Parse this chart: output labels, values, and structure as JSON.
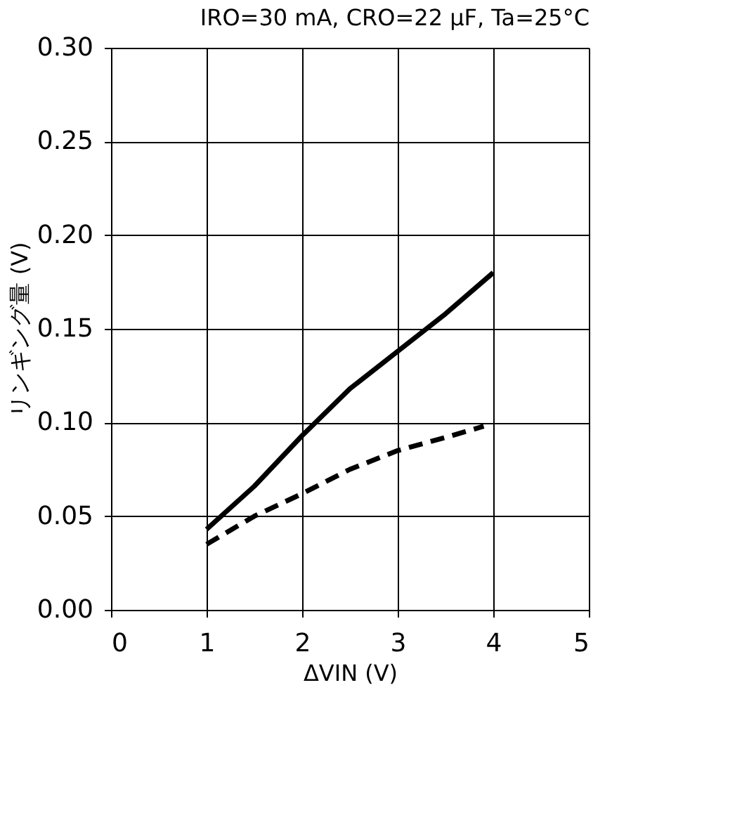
{
  "chart_data": {
    "type": "line",
    "title": "IRO=30 mA, CRO=22 µF, Ta=25°C",
    "xlabel": "ΔVIN (V)",
    "ylabel": "リンギング量 (V)",
    "xlim": [
      0,
      5
    ],
    "xticks": [
      0,
      1,
      2,
      3,
      4,
      5
    ],
    "ylim": [
      0,
      0.3
    ],
    "yticks": [
      {
        "value": 0,
        "label": "0.00"
      },
      {
        "value": 0.05,
        "label": "0.05"
      },
      {
        "value": 0.1,
        "label": "0.10"
      },
      {
        "value": 0.15,
        "label": "0.15"
      },
      {
        "value": 0.2,
        "label": "0.20"
      },
      {
        "value": 0.25,
        "label": "0.25"
      },
      {
        "value": 0.3,
        "label": "0.30"
      }
    ],
    "grid": true,
    "series": [
      {
        "color": "#000000",
        "line_style": "solid",
        "x": [
          1,
          1.5,
          2,
          2.5,
          3,
          3.5,
          4
        ],
        "values": [
          0.043,
          0.066,
          0.093,
          0.118,
          0.138,
          0.158,
          0.18
        ]
      },
      {
        "color": "#000000",
        "line_style": "dashed",
        "x": [
          1,
          1.5,
          2,
          2.5,
          3,
          3.5,
          3.9
        ],
        "values": [
          0.035,
          0.05,
          0.062,
          0.075,
          0.085,
          0.092,
          0.098
        ]
      }
    ]
  }
}
